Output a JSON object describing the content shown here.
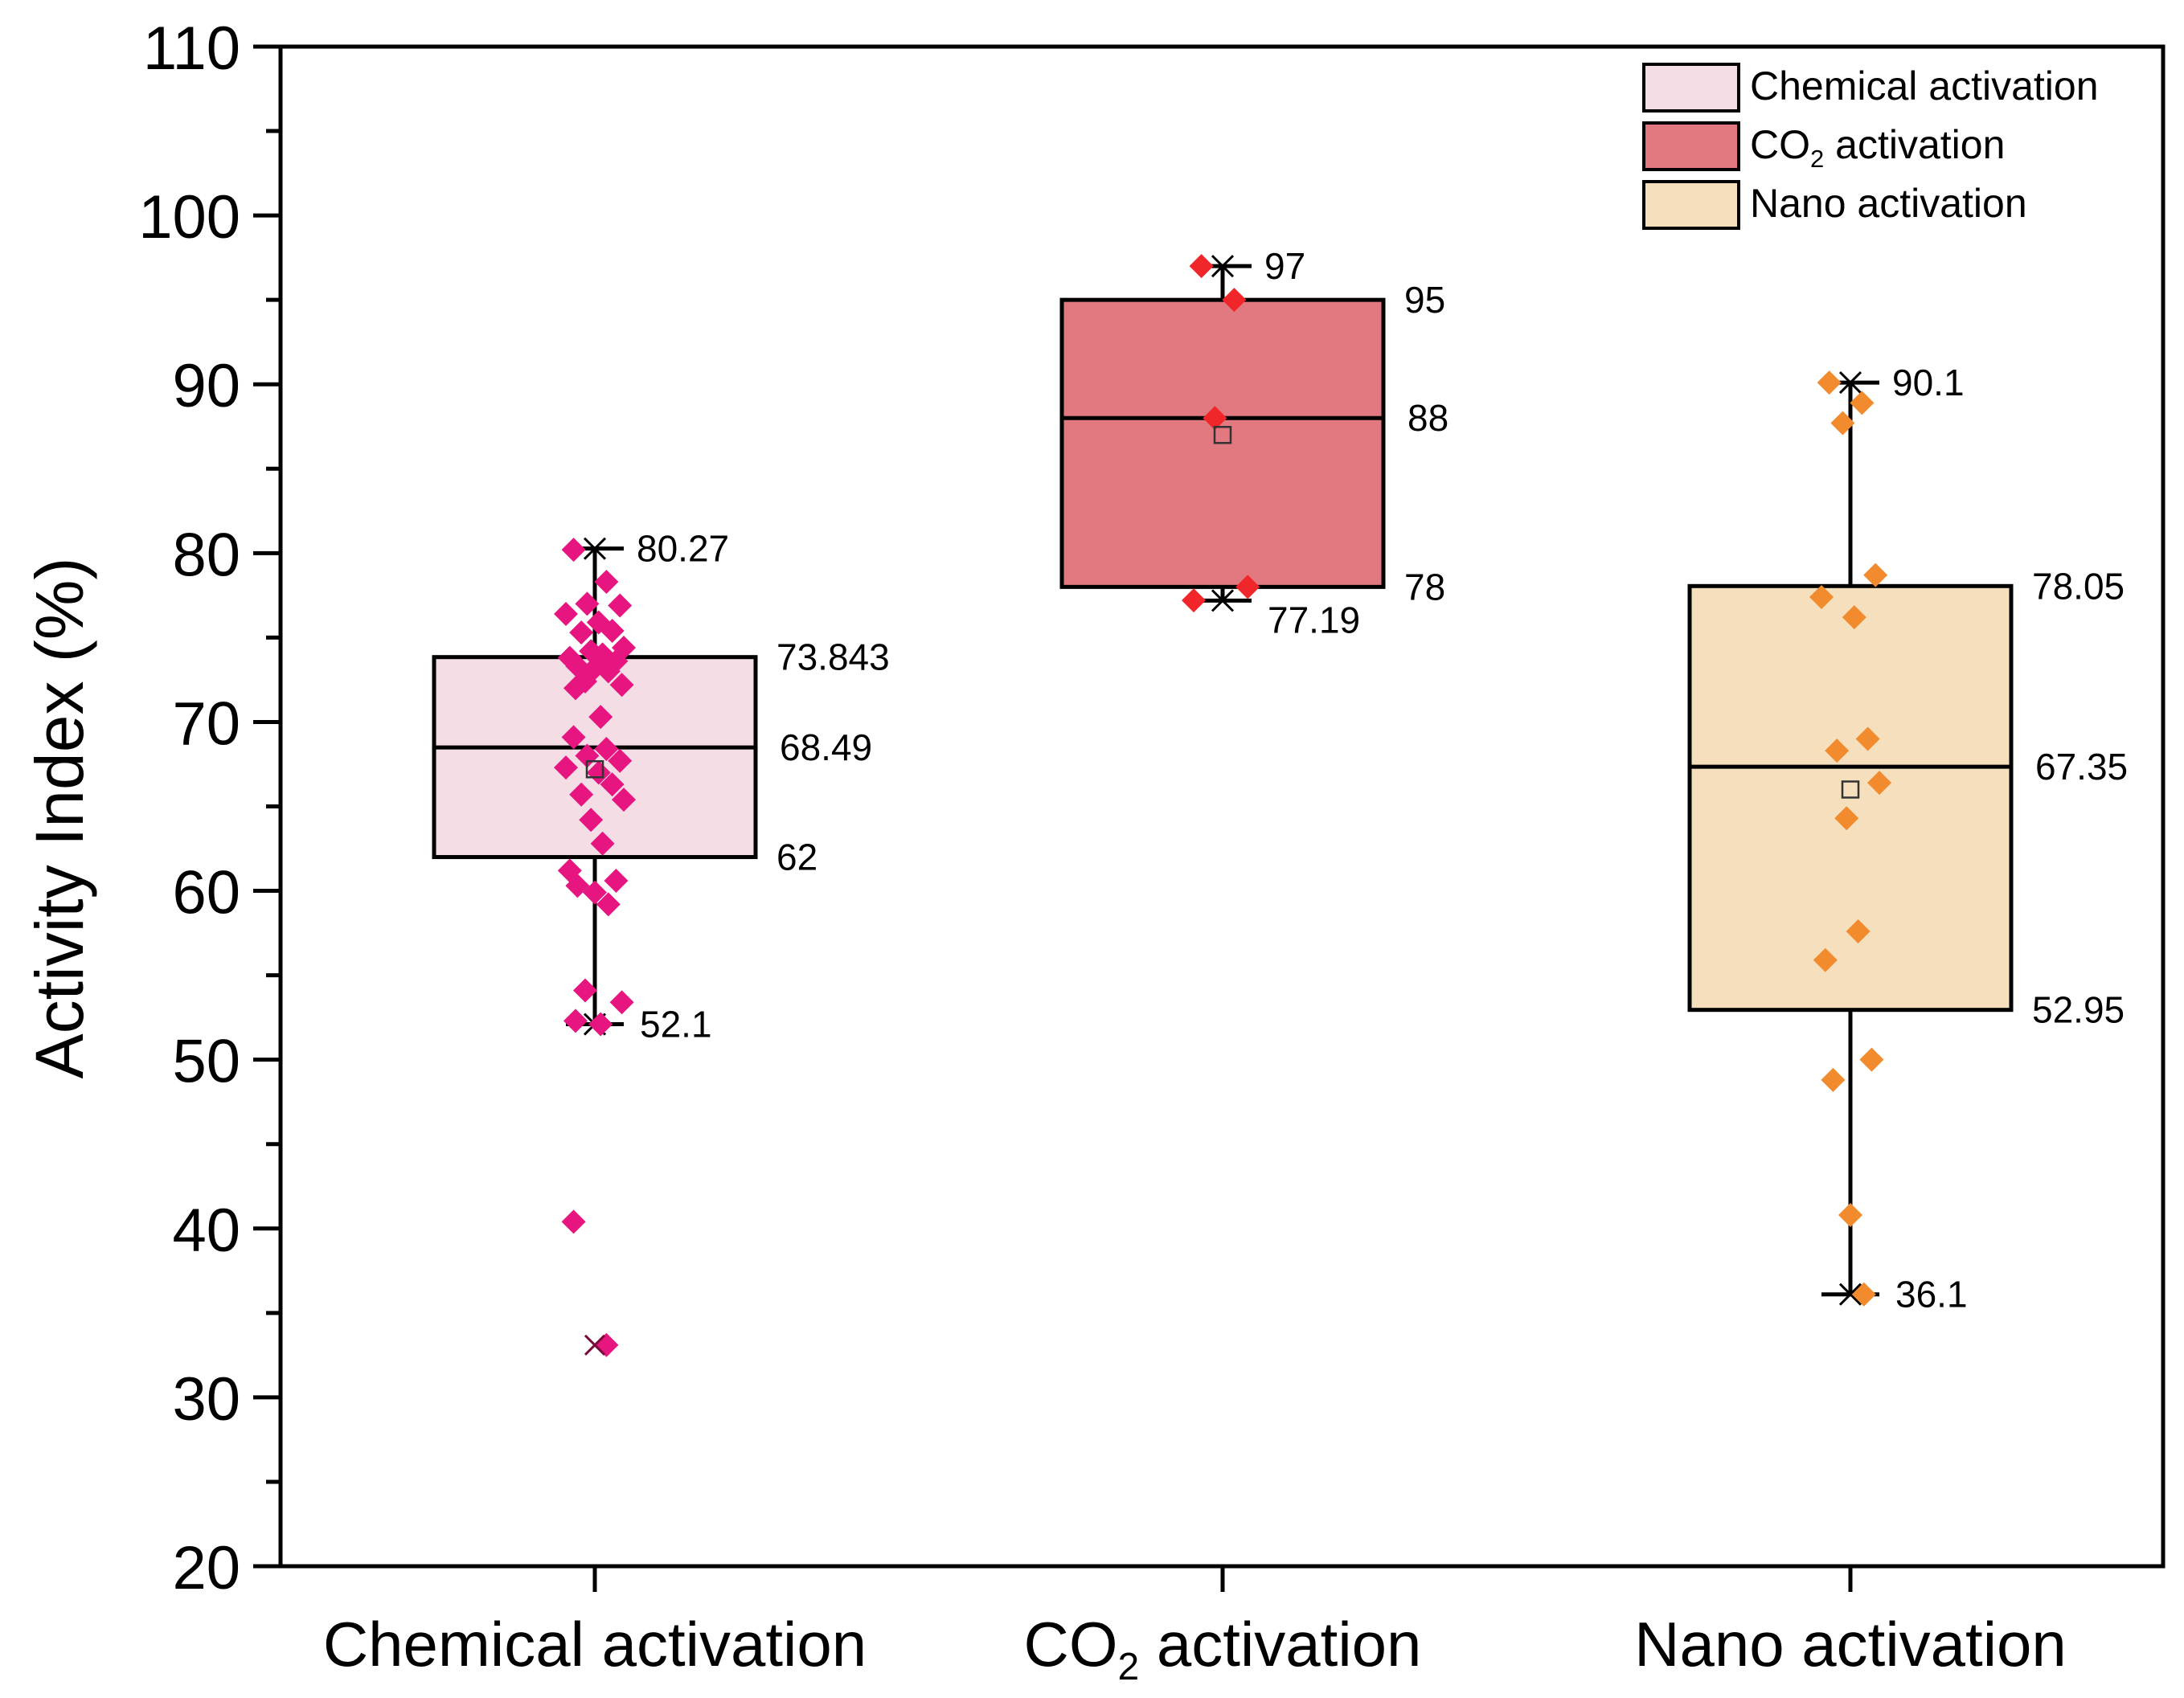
{
  "chart_data": {
    "type": "box",
    "ylabel": "Activity Index (%)",
    "ylim": [
      20,
      110
    ],
    "yticks": [
      20,
      30,
      40,
      50,
      60,
      70,
      80,
      90,
      100,
      110
    ],
    "legend_position": "top-right",
    "groups": [
      {
        "name": "Chemical activation",
        "name_sub": "",
        "name_tail": "",
        "fill": "#f5dde6",
        "point_color": "#e6157f",
        "whisker_low": 52.1,
        "q1": 62,
        "median": 68.49,
        "q3": 73.843,
        "whisker_high": 80.27,
        "mean": 67.2,
        "labels": {
          "whisker_high": "80.27",
          "q3": "73.843",
          "median": "68.49",
          "q1": "62",
          "whisker_low": "52.1"
        },
        "points": [
          80.2,
          78.3,
          77.0,
          76.9,
          76.4,
          75.9,
          75.4,
          75.3,
          74.4,
          74.2,
          74.0,
          73.8,
          73.6,
          73.3,
          73.2,
          73.0,
          72.4,
          72.2,
          72.0,
          70.3,
          69.1,
          68.4,
          68.0,
          67.7,
          67.3,
          67.0,
          66.3,
          65.7,
          65.4,
          64.2,
          62.8,
          61.2,
          60.6,
          60.3,
          59.9,
          59.2,
          54.1,
          53.4,
          52.3,
          52.1,
          40.4,
          33.1
        ],
        "outlier_marks": [
          33.1
        ]
      },
      {
        "name": "CO",
        "name_sub": "2",
        "name_tail": " activation",
        "fill": "#e27880",
        "point_color": "#f0262b",
        "whisker_low": 77.19,
        "q1": 78,
        "median": 88,
        "q3": 95,
        "whisker_high": 97,
        "mean": 87.0,
        "labels": {
          "whisker_high": "97",
          "q3": "95",
          "median": "88",
          "q1": "78",
          "whisker_low": "77.19"
        },
        "points": [
          97,
          95,
          88,
          78,
          77.2
        ],
        "outlier_marks": []
      },
      {
        "name": "Nano activation",
        "name_sub": "",
        "name_tail": "",
        "fill": "#f6dfbc",
        "point_color": "#f28a2e",
        "whisker_low": 36.1,
        "q1": 52.95,
        "median": 67.35,
        "q3": 78.05,
        "whisker_high": 90.1,
        "mean": 66.0,
        "labels": {
          "whisker_high": "90.1",
          "q3": "78.05",
          "median": "67.35",
          "q1": "52.95",
          "whisker_low": "36.1"
        },
        "points": [
          90.1,
          88.9,
          87.7,
          78.7,
          77.4,
          76.2,
          69.0,
          68.3,
          66.4,
          64.3,
          57.6,
          55.9,
          50.0,
          48.8,
          40.8,
          36.1
        ],
        "outlier_marks": []
      }
    ]
  }
}
